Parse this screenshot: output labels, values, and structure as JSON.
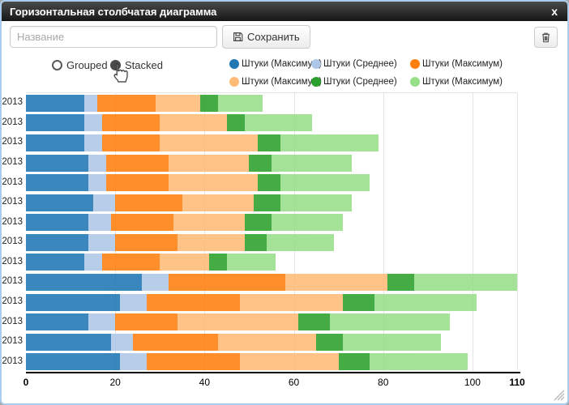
{
  "dialog": {
    "title": "Горизонтальная столбчатая диаграмма",
    "close_label": "x"
  },
  "toolbar": {
    "name_placeholder": "Название",
    "save_label": "Сохранить"
  },
  "controls": {
    "grouped_label": "Grouped",
    "stacked_label": "Stacked",
    "selected_mode": "Stacked"
  },
  "legend": {
    "items": [
      {
        "label": "Штуки (Максимум)",
        "color": "#1f77b4"
      },
      {
        "label": "Штуки (Среднее)",
        "color": "#aec7e8"
      },
      {
        "label": "Штуки (Максимум)",
        "color": "#ff7f0e"
      },
      {
        "label": "Штуки (Максимум)",
        "color": "#ffbb78"
      },
      {
        "label": "Штуки (Среднее)",
        "color": "#2ca02c"
      },
      {
        "label": "Штуки (Максимум)",
        "color": "#98df8a"
      }
    ]
  },
  "chart_data": {
    "type": "bar",
    "orientation": "horizontal",
    "mode": "stacked",
    "categories": [
      "2013",
      "2013",
      "2013",
      "2013",
      "2013",
      "2013",
      "2013",
      "2013",
      "2013",
      "2013",
      "2013",
      "2013",
      "2013",
      "2013"
    ],
    "categories_clipped": true,
    "series": [
      {
        "name": "Штуки (Максимум)",
        "color": "#1f77b4",
        "values": [
          13,
          13,
          13,
          14,
          14,
          15,
          14,
          14,
          13,
          26,
          21,
          14,
          19,
          21
        ]
      },
      {
        "name": "Штуки (Среднее)",
        "color": "#aec7e8",
        "values": [
          3,
          4,
          4,
          4,
          4,
          5,
          5,
          6,
          4,
          6,
          6,
          6,
          5,
          6
        ]
      },
      {
        "name": "Штуки (Максимум)",
        "color": "#ff7f0e",
        "values": [
          13,
          13,
          13,
          14,
          14,
          15,
          14,
          14,
          13,
          26,
          21,
          14,
          19,
          21
        ]
      },
      {
        "name": "Штуки (Максимум)",
        "color": "#ffbb78",
        "values": [
          10,
          15,
          22,
          18,
          20,
          16,
          16,
          15,
          11,
          23,
          23,
          27,
          22,
          22
        ]
      },
      {
        "name": "Штуки (Среднее)",
        "color": "#2ca02c",
        "values": [
          4,
          4,
          5,
          5,
          5,
          6,
          6,
          5,
          4,
          6,
          7,
          7,
          6,
          7
        ]
      },
      {
        "name": "Штуки (Максимум)",
        "color": "#98df8a",
        "values": [
          10,
          15,
          22,
          18,
          20,
          16,
          16,
          15,
          11,
          23,
          23,
          27,
          22,
          22
        ]
      }
    ],
    "totals": [
      53,
      64,
      79,
      73,
      77,
      73,
      71,
      69,
      56,
      110,
      101,
      95,
      93,
      99
    ],
    "x_ticks": [
      0,
      20,
      40,
      60,
      80,
      100,
      110
    ],
    "xlim": [
      0,
      110
    ],
    "grid": true,
    "legend_position": "top-right"
  }
}
